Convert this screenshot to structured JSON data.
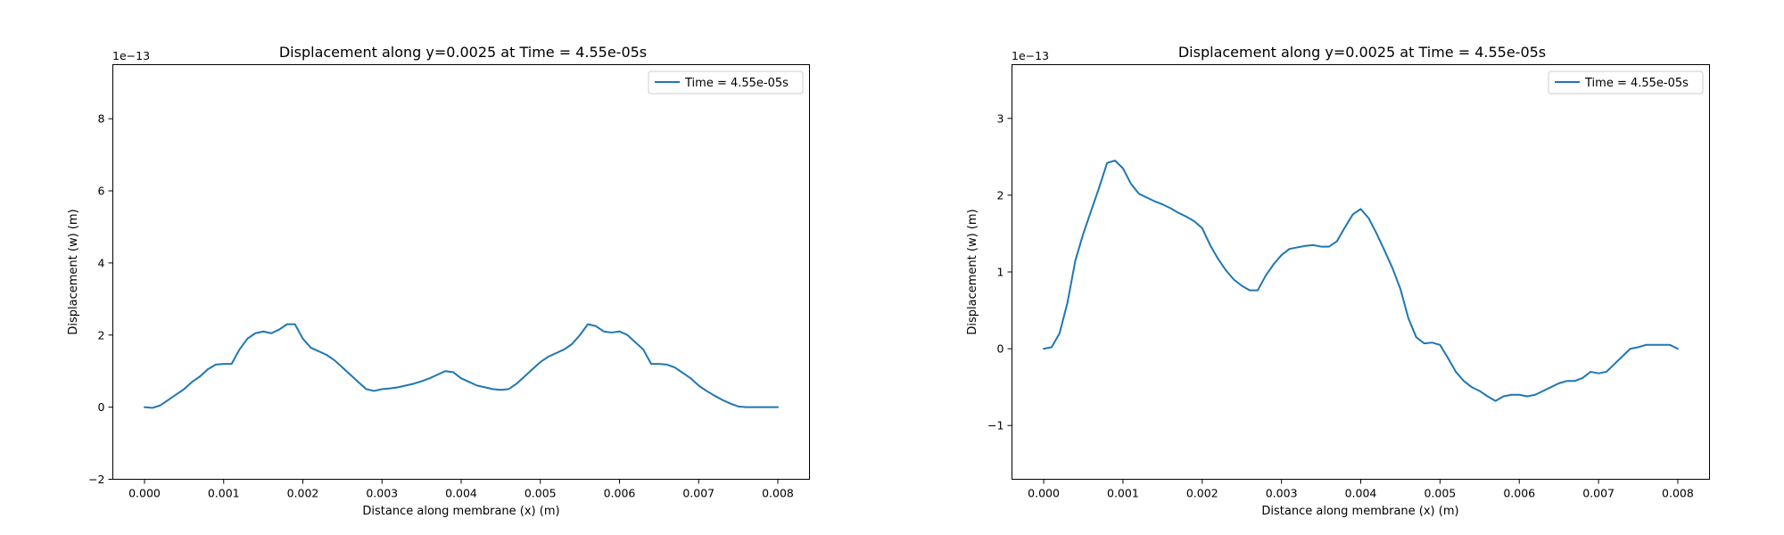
{
  "chart_data": [
    {
      "type": "line",
      "title": "Displacement along y=0.0025 at Time = 4.55e-05s",
      "xlabel": "Distance along membrane (x) (m)",
      "ylabel": "Displacement (w) (m)",
      "y_offset_label": "1e−13",
      "y_scale": 1e-13,
      "xlim": [
        -0.0004,
        0.0084
      ],
      "ylim": [
        -2,
        9.5
      ],
      "xticks": [
        0,
        0.001,
        0.002,
        0.003,
        0.004,
        0.005,
        0.006,
        0.007,
        0.008
      ],
      "xtick_labels": [
        "0.000",
        "0.001",
        "0.002",
        "0.003",
        "0.004",
        "0.005",
        "0.006",
        "0.007",
        "0.008"
      ],
      "yticks": [
        -2,
        0,
        2,
        4,
        6,
        8
      ],
      "ytick_labels": [
        "−2",
        "0",
        "2",
        "4",
        "6",
        "8"
      ],
      "grid": false,
      "legend_position": "top-right",
      "series": [
        {
          "name": "Time = 4.55e-05s",
          "color": "#1f77b4",
          "x": [
            0,
            0.0001,
            0.0002,
            0.0003,
            0.0004,
            0.0005,
            0.0006,
            0.0007,
            0.0008,
            0.0009,
            0.001,
            0.0011,
            0.0012,
            0.0013,
            0.0014,
            0.0015,
            0.0016,
            0.0017,
            0.0018,
            0.0019,
            0.002,
            0.0021,
            0.0022,
            0.0023,
            0.0024,
            0.0025,
            0.0026,
            0.0027,
            0.0028,
            0.0029,
            0.003,
            0.0031,
            0.0032,
            0.0033,
            0.0034,
            0.0035,
            0.0036,
            0.0037,
            0.0038,
            0.0039,
            0.004,
            0.0041,
            0.0042,
            0.0043,
            0.0044,
            0.0045,
            0.0046,
            0.0047,
            0.0048,
            0.0049,
            0.005,
            0.0051,
            0.0052,
            0.0053,
            0.0054,
            0.0055,
            0.0056,
            0.0057,
            0.0058,
            0.0059,
            0.006,
            0.0061,
            0.0062,
            0.0063,
            0.0064,
            0.0065,
            0.0066,
            0.0067,
            0.0068,
            0.0069,
            0.007,
            0.0071,
            0.0072,
            0.0073,
            0.0074,
            0.0075,
            0.0076,
            0.0077,
            0.0078,
            0.0079,
            0.008
          ],
          "y": [
            0,
            -0.02,
            0.05,
            0.2,
            0.35,
            0.5,
            0.7,
            0.85,
            1.05,
            1.18,
            1.2,
            1.2,
            1.6,
            1.9,
            2.05,
            2.1,
            2.05,
            2.15,
            2.3,
            2.3,
            1.9,
            1.65,
            1.55,
            1.45,
            1.3,
            1.1,
            0.9,
            0.7,
            0.5,
            0.45,
            0.5,
            0.52,
            0.55,
            0.6,
            0.65,
            0.72,
            0.8,
            0.9,
            1.0,
            0.97,
            0.8,
            0.7,
            0.6,
            0.55,
            0.5,
            0.48,
            0.5,
            0.65,
            0.85,
            1.05,
            1.25,
            1.4,
            1.5,
            1.6,
            1.75,
            2.0,
            2.3,
            2.25,
            2.1,
            2.07,
            2.1,
            2.0,
            1.8,
            1.6,
            1.2,
            1.2,
            1.18,
            1.1,
            0.95,
            0.8,
            0.6,
            0.45,
            0.32,
            0.2,
            0.1,
            0.02,
            0,
            0,
            0,
            0,
            0
          ]
        }
      ]
    },
    {
      "type": "line",
      "title": "Displacement along y=0.0025 at Time = 4.55e-05s",
      "xlabel": "Distance along membrane (x) (m)",
      "ylabel": "Displacement (w) (m)",
      "y_offset_label": "1e−13",
      "y_scale": 1e-13,
      "xlim": [
        -0.0004,
        0.0084
      ],
      "ylim": [
        -1.7,
        3.7
      ],
      "xticks": [
        0,
        0.001,
        0.002,
        0.003,
        0.004,
        0.005,
        0.006,
        0.007,
        0.008
      ],
      "xtick_labels": [
        "0.000",
        "0.001",
        "0.002",
        "0.003",
        "0.004",
        "0.005",
        "0.006",
        "0.007",
        "0.008"
      ],
      "yticks": [
        -1,
        0,
        1,
        2,
        3
      ],
      "ytick_labels": [
        "−1",
        "0",
        "1",
        "2",
        "3"
      ],
      "grid": false,
      "legend_position": "top-right",
      "series": [
        {
          "name": "Time = 4.55e-05s",
          "color": "#1f77b4",
          "x": [
            0,
            0.0001,
            0.0002,
            0.0003,
            0.0004,
            0.0005,
            0.0006,
            0.0007,
            0.0008,
            0.0009,
            0.001,
            0.0011,
            0.0012,
            0.0013,
            0.0014,
            0.0015,
            0.0016,
            0.0017,
            0.0018,
            0.0019,
            0.002,
            0.0021,
            0.0022,
            0.0023,
            0.0024,
            0.0025,
            0.0026,
            0.0027,
            0.0028,
            0.0029,
            0.003,
            0.0031,
            0.0032,
            0.0033,
            0.0034,
            0.0035,
            0.0036,
            0.0037,
            0.0038,
            0.0039,
            0.004,
            0.0041,
            0.0042,
            0.0043,
            0.0044,
            0.0045,
            0.0046,
            0.0047,
            0.0048,
            0.0049,
            0.005,
            0.0051,
            0.0052,
            0.0053,
            0.0054,
            0.0055,
            0.0056,
            0.0057,
            0.0058,
            0.0059,
            0.006,
            0.0061,
            0.0062,
            0.0063,
            0.0064,
            0.0065,
            0.0066,
            0.0067,
            0.0068,
            0.0069,
            0.007,
            0.0071,
            0.0072,
            0.0073,
            0.0074,
            0.0075,
            0.0076,
            0.0077,
            0.0078,
            0.0079,
            0.008
          ],
          "y": [
            0,
            0.02,
            0.2,
            0.6,
            1.15,
            1.5,
            1.8,
            2.1,
            2.42,
            2.45,
            2.35,
            2.15,
            2.02,
            1.97,
            1.92,
            1.88,
            1.83,
            1.77,
            1.72,
            1.66,
            1.57,
            1.35,
            1.17,
            1.02,
            0.9,
            0.82,
            0.76,
            0.76,
            0.95,
            1.1,
            1.22,
            1.3,
            1.32,
            1.34,
            1.35,
            1.33,
            1.33,
            1.4,
            1.58,
            1.75,
            1.82,
            1.7,
            1.5,
            1.28,
            1.05,
            0.78,
            0.4,
            0.15,
            0.07,
            0.08,
            0.05,
            -0.12,
            -0.3,
            -0.42,
            -0.5,
            -0.55,
            -0.62,
            -0.68,
            -0.62,
            -0.6,
            -0.6,
            -0.62,
            -0.6,
            -0.55,
            -0.5,
            -0.45,
            -0.42,
            -0.42,
            -0.38,
            -0.3,
            -0.32,
            -0.3,
            -0.2,
            -0.1,
            0,
            0.02,
            0.05,
            0.05,
            0.05,
            0.05,
            0
          ]
        }
      ]
    }
  ]
}
